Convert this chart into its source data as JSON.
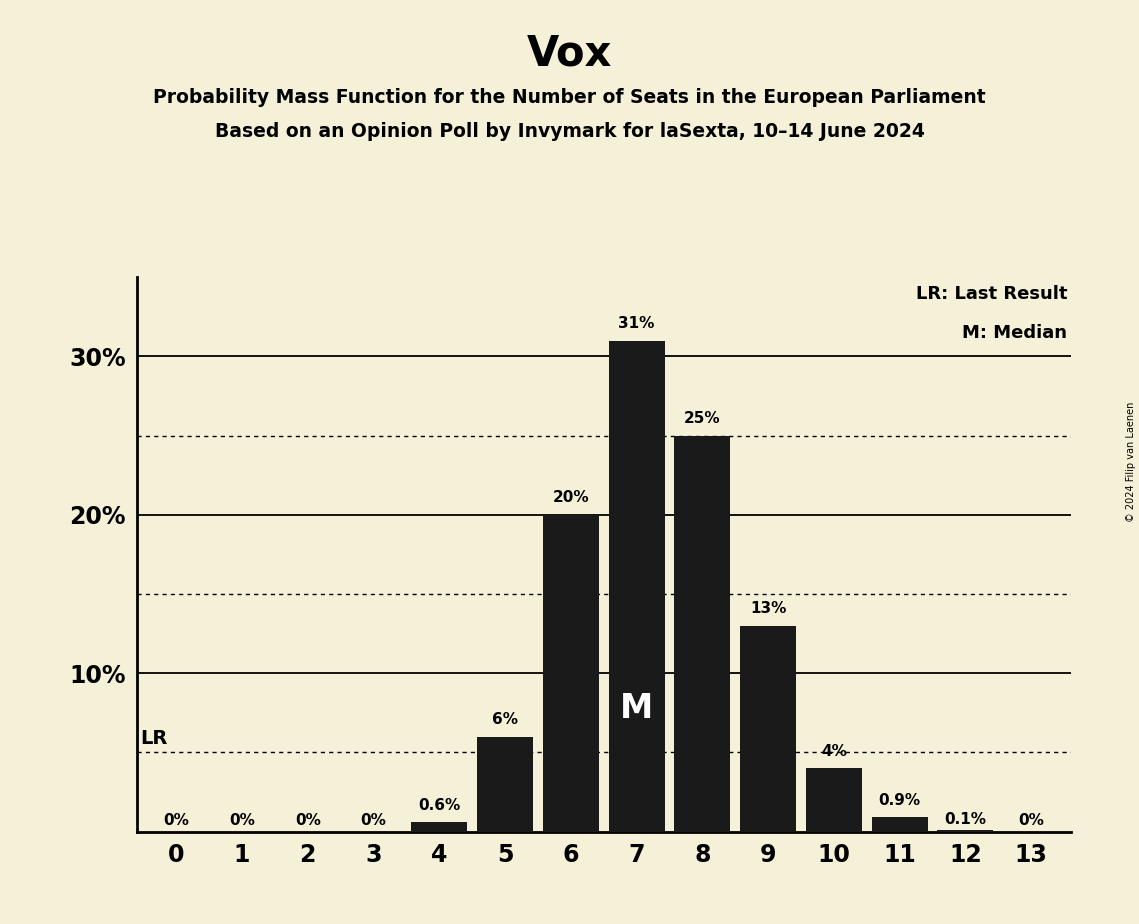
{
  "title": "Vox",
  "subtitle1": "Probability Mass Function for the Number of Seats in the European Parliament",
  "subtitle2": "Based on an Opinion Poll by Invymark for laSexta, 10–14 June 2024",
  "categories": [
    0,
    1,
    2,
    3,
    4,
    5,
    6,
    7,
    8,
    9,
    10,
    11,
    12,
    13
  ],
  "values": [
    0.0,
    0.0,
    0.0,
    0.0,
    0.6,
    6.0,
    20.0,
    31.0,
    25.0,
    13.0,
    4.0,
    0.9,
    0.1,
    0.0
  ],
  "bar_color": "#1a1a1a",
  "background_color": "#f5f0d8",
  "bar_labels": [
    "0%",
    "0%",
    "0%",
    "0%",
    "0.6%",
    "6%",
    "20%",
    "31%",
    "25%",
    "13%",
    "4%",
    "0.9%",
    "0.1%",
    "0%"
  ],
  "median_seat": 7,
  "last_result_pct": 5.0,
  "dotted_lines": [
    5.0,
    15.0,
    25.0
  ],
  "solid_lines": [
    10.0,
    20.0,
    30.0
  ],
  "legend_lr": "LR: Last Result",
  "legend_m": "M: Median",
  "copyright": "© 2024 Filip van Laenen",
  "ylim": [
    0,
    35
  ],
  "lr_label": "LR"
}
